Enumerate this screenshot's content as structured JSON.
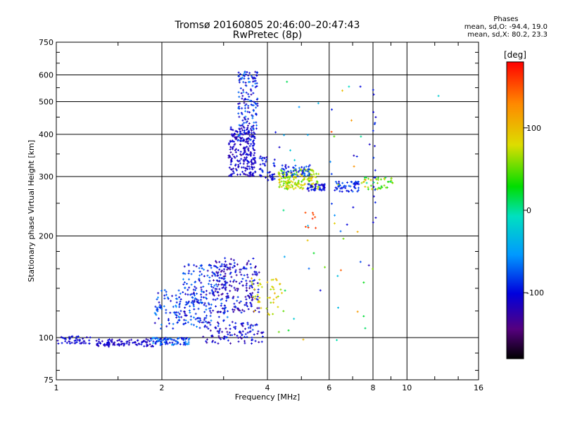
{
  "chart_data": {
    "type": "scatter",
    "title": "Tromsø 20160805 20:46:00–20:47:43",
    "subtitle": "RwPretec (8p)",
    "xlabel": "Frequency [MHz]",
    "ylabel": "Stationary phase Virtual Height [km]",
    "x_scale": "log",
    "y_scale": "log",
    "xlim": [
      1,
      16
    ],
    "ylim": [
      75,
      750
    ],
    "x_ticks": [
      1,
      2,
      4,
      6,
      8,
      10,
      16
    ],
    "y_ticks": [
      75,
      100,
      200,
      300,
      400,
      500,
      600,
      750
    ],
    "grid": true,
    "colorbar": {
      "label": "[deg]",
      "range": [
        -180,
        180
      ],
      "ticks": [
        100,
        0,
        -100
      ]
    },
    "phase_stats": {
      "heading": "Phases",
      "line_o": "mean, sd,O: -94.4, 19.0",
      "line_x": "mean, sd,X:  80.2, 23.3"
    },
    "series": [
      {
        "clusters": [
          {
            "fmin": 1.0,
            "fmax": 1.25,
            "hmin": 96,
            "hmax": 101,
            "n": 45,
            "pmin": -120,
            "pmax": -90
          },
          {
            "fmin": 1.3,
            "fmax": 1.9,
            "hmin": 94,
            "hmax": 99,
            "n": 95,
            "pmin": -125,
            "pmax": -95
          },
          {
            "fmin": 1.85,
            "fmax": 2.4,
            "hmin": 95,
            "hmax": 100,
            "n": 85,
            "pmin": -110,
            "pmax": -45
          },
          {
            "fmin": 1.9,
            "fmax": 2.7,
            "hmin": 106,
            "hmax": 140,
            "n": 140,
            "pmin": -115,
            "pmax": -55
          },
          {
            "fmin": 2.3,
            "fmax": 3.1,
            "hmin": 112,
            "hmax": 165,
            "n": 150,
            "pmin": -120,
            "pmax": -60
          },
          {
            "fmin": 2.8,
            "fmax": 3.8,
            "hmin": 118,
            "hmax": 172,
            "n": 210,
            "pmin": -140,
            "pmax": -80
          },
          {
            "fmin": 2.6,
            "fmax": 3.9,
            "hmin": 96,
            "hmax": 112,
            "n": 110,
            "pmin": -130,
            "pmax": -80
          },
          {
            "fmin": 3.6,
            "fmax": 4.4,
            "hmin": 115,
            "hmax": 150,
            "n": 45,
            "pmin": 60,
            "pmax": 110
          },
          {
            "fmin": 3.1,
            "fmax": 3.7,
            "hmin": 300,
            "hmax": 420,
            "n": 240,
            "pmin": -130,
            "pmax": -95
          },
          {
            "fmin": 3.3,
            "fmax": 3.75,
            "hmin": 380,
            "hmax": 615,
            "n": 160,
            "pmin": -125,
            "pmax": -60
          },
          {
            "fmin": 3.8,
            "fmax": 4.2,
            "hmin": 290,
            "hmax": 345,
            "n": 45,
            "pmin": -120,
            "pmax": -80
          },
          {
            "fmin": 4.3,
            "fmax": 5.6,
            "hmin": 275,
            "hmax": 315,
            "n": 170,
            "pmin": 40,
            "pmax": 100
          },
          {
            "fmin": 4.4,
            "fmax": 5.3,
            "hmin": 300,
            "hmax": 325,
            "n": 55,
            "pmin": -120,
            "pmax": -60
          },
          {
            "fmin": 5.2,
            "fmax": 5.9,
            "hmin": 272,
            "hmax": 285,
            "n": 45,
            "pmin": -120,
            "pmax": -80
          },
          {
            "fmin": 6.2,
            "fmax": 7.3,
            "hmin": 270,
            "hmax": 290,
            "n": 55,
            "pmin": -110,
            "pmax": -70
          },
          {
            "fmin": 7.4,
            "fmax": 9.3,
            "hmin": 275,
            "hmax": 300,
            "n": 45,
            "pmin": 0,
            "pmax": 100
          },
          {
            "fmin": 8.0,
            "fmax": 8.15,
            "hmin": 150,
            "hmax": 600,
            "n": 18,
            "pmin": -110,
            "pmax": -80
          },
          {
            "fmin": 4.2,
            "fmax": 8.0,
            "hmin": 90,
            "hmax": 600,
            "n": 60,
            "pmin": -120,
            "pmax": 160
          },
          {
            "fmin": 5.1,
            "fmax": 5.5,
            "hmin": 210,
            "hmax": 235,
            "n": 8,
            "pmin": 150,
            "pmax": 170
          }
        ],
        "points": [
          {
            "x": 12.3,
            "y": 520,
            "phase": -20
          }
        ]
      }
    ]
  }
}
